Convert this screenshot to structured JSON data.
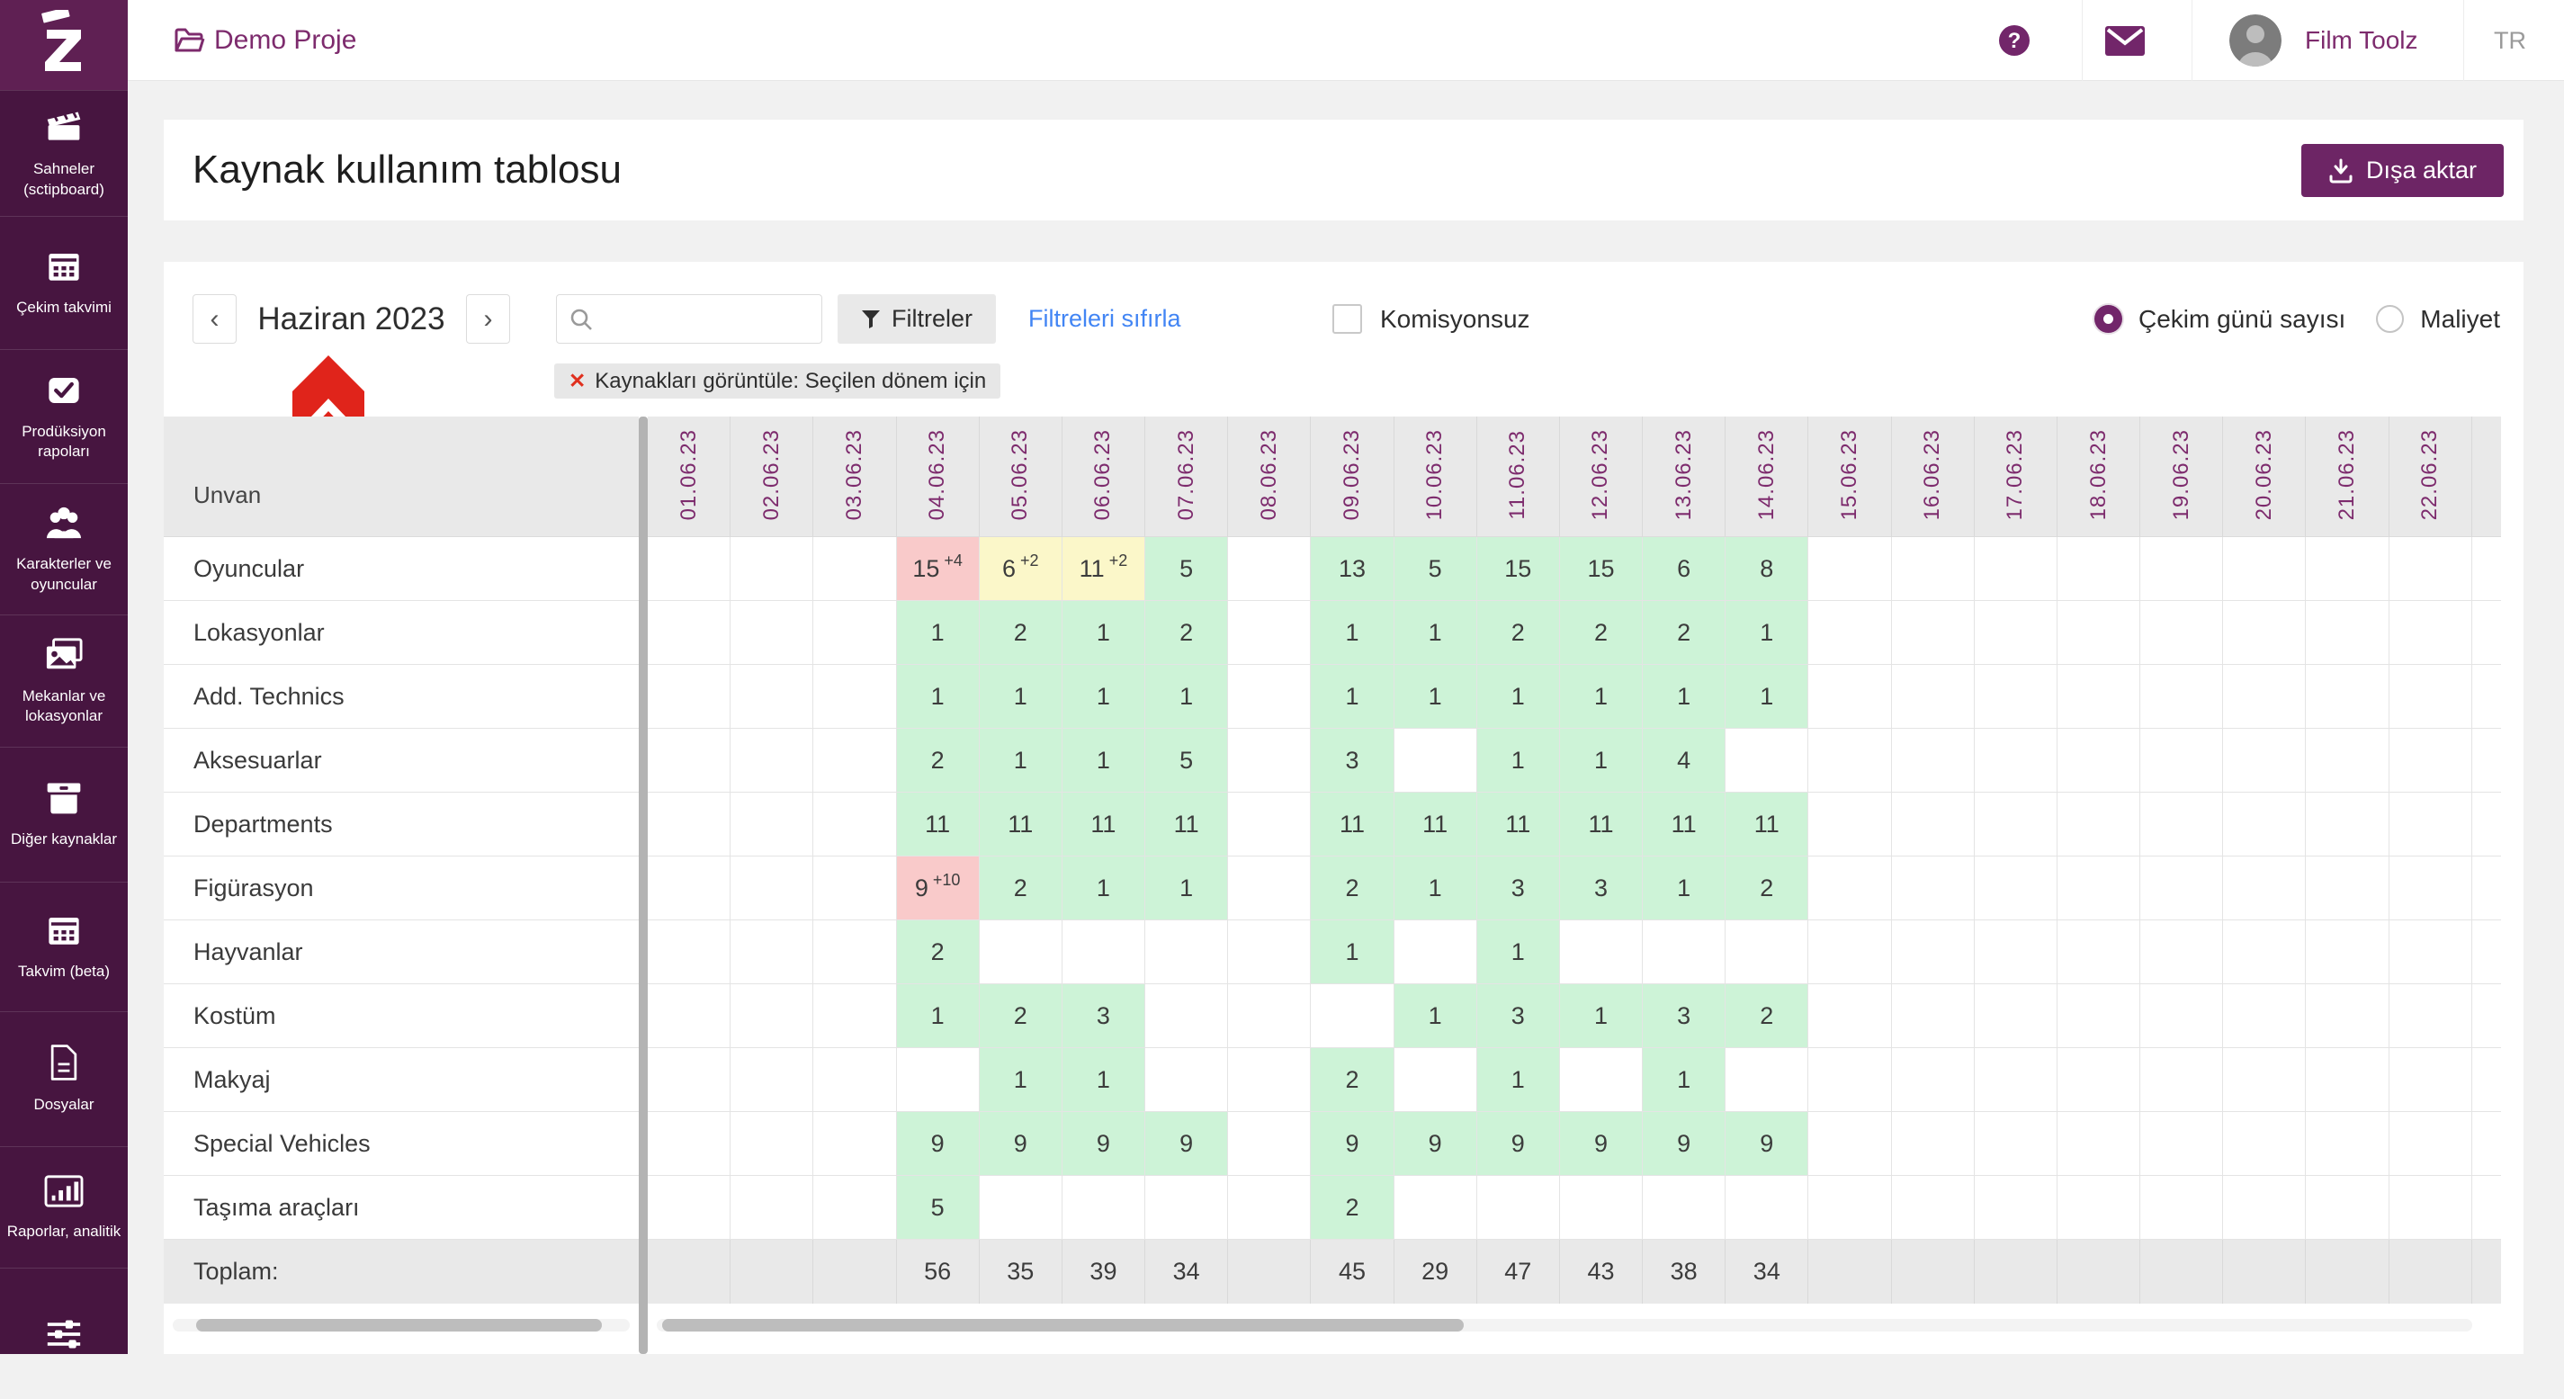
{
  "topbar": {
    "project": "Demo Proje",
    "account": "Film Toolz",
    "lang": "TR"
  },
  "sidebar": {
    "items": [
      {
        "icon": "clapperboard-icon",
        "label": "Sahneler (sctipboard)"
      },
      {
        "icon": "calendar-icon",
        "label": "Çekim takvimi"
      },
      {
        "icon": "check-square-icon",
        "label": "Prodüksiyon rapoları"
      },
      {
        "icon": "people-icon",
        "label": "Karakterler ve oyuncular"
      },
      {
        "icon": "photo-icon",
        "label": "Mekanlar ve lokasyonlar"
      },
      {
        "icon": "archive-icon",
        "label": "Diğer kaynaklar"
      },
      {
        "icon": "calendar-icon",
        "label": "Takvim (beta)"
      },
      {
        "icon": "file-icon",
        "label": "Dosyalar"
      },
      {
        "icon": "bar-chart-icon",
        "label": "Raporlar, analitik"
      },
      {
        "icon": "sliders-icon",
        "label": ""
      }
    ]
  },
  "page": {
    "title": "Kaynak kullanım tablosu",
    "export_label": "Dışa aktar"
  },
  "toolbar": {
    "prev": "‹",
    "next": "›",
    "month": "Haziran 2023",
    "search_placeholder": "",
    "search_value": "",
    "filters_label": "Filtreler",
    "reset_label": "Filtreleri sıfırla",
    "checkbox_label": "Komisyonsuz",
    "checkbox_checked": false,
    "radio_days_label": "Çekim günü sayısı",
    "radio_days_selected": true,
    "radio_cost_label": "Maliyet",
    "radio_cost_selected": false
  },
  "filter_chip": {
    "close": "✕",
    "text": "Kaynakları görüntüle: Seçilen dönem için"
  },
  "table": {
    "first_col_header": "Unvan",
    "dates": [
      "01.06.23",
      "02.06.23",
      "03.06.23",
      "04.06.23",
      "05.06.23",
      "06.06.23",
      "07.06.23",
      "08.06.23",
      "09.06.23",
      "10.06.23",
      "11.06.23",
      "12.06.23",
      "13.06.23",
      "14.06.23",
      "15.06.23",
      "16.06.23",
      "17.06.23",
      "18.06.23",
      "19.06.23",
      "20.06.23",
      "21.06.23",
      "22.06.23"
    ],
    "rows": [
      {
        "label": "Oyuncular",
        "cells": [
          null,
          null,
          null,
          {
            "v": 15,
            "sup": "+4",
            "bg": "pink"
          },
          {
            "v": 6,
            "sup": "+2",
            "bg": "yellow"
          },
          {
            "v": 11,
            "sup": "+2",
            "bg": "yellow"
          },
          5,
          null,
          13,
          5,
          15,
          15,
          6,
          8,
          null,
          null,
          null,
          null,
          null,
          null,
          null,
          null
        ]
      },
      {
        "label": "Lokasyonlar",
        "cells": [
          null,
          null,
          null,
          1,
          2,
          1,
          2,
          null,
          1,
          1,
          2,
          2,
          2,
          1,
          null,
          null,
          null,
          null,
          null,
          null,
          null,
          null
        ]
      },
      {
        "label": "Add. Technics",
        "cells": [
          null,
          null,
          null,
          1,
          1,
          1,
          1,
          null,
          1,
          1,
          1,
          1,
          1,
          1,
          null,
          null,
          null,
          null,
          null,
          null,
          null,
          null
        ]
      },
      {
        "label": "Aksesuarlar",
        "cells": [
          null,
          null,
          null,
          2,
          1,
          1,
          5,
          null,
          3,
          null,
          1,
          1,
          4,
          null,
          null,
          null,
          null,
          null,
          null,
          null,
          null,
          null
        ]
      },
      {
        "label": "Departments",
        "cells": [
          null,
          null,
          null,
          11,
          11,
          11,
          11,
          null,
          11,
          11,
          11,
          11,
          11,
          11,
          null,
          null,
          null,
          null,
          null,
          null,
          null,
          null
        ]
      },
      {
        "label": "Figürasyon",
        "cells": [
          null,
          null,
          null,
          {
            "v": 9,
            "sup": "+10",
            "bg": "pink"
          },
          2,
          1,
          1,
          null,
          2,
          1,
          3,
          3,
          1,
          2,
          null,
          null,
          null,
          null,
          null,
          null,
          null,
          null
        ]
      },
      {
        "label": "Hayvanlar",
        "cells": [
          null,
          null,
          null,
          2,
          null,
          null,
          null,
          null,
          1,
          null,
          1,
          null,
          null,
          null,
          null,
          null,
          null,
          null,
          null,
          null,
          null,
          null
        ]
      },
      {
        "label": "Kostüm",
        "cells": [
          null,
          null,
          null,
          1,
          2,
          3,
          null,
          null,
          null,
          1,
          3,
          1,
          3,
          2,
          null,
          null,
          null,
          null,
          null,
          null,
          null,
          null
        ]
      },
      {
        "label": "Makyaj",
        "cells": [
          null,
          null,
          null,
          null,
          1,
          1,
          null,
          null,
          2,
          null,
          1,
          null,
          1,
          null,
          null,
          null,
          null,
          null,
          null,
          null,
          null,
          null
        ]
      },
      {
        "label": "Special Vehicles",
        "cells": [
          null,
          null,
          null,
          9,
          9,
          9,
          9,
          null,
          9,
          9,
          9,
          9,
          9,
          9,
          null,
          null,
          null,
          null,
          null,
          null,
          null,
          null
        ]
      },
      {
        "label": "Taşıma araçları",
        "cells": [
          null,
          null,
          null,
          5,
          null,
          null,
          null,
          null,
          2,
          null,
          null,
          null,
          null,
          null,
          null,
          null,
          null,
          null,
          null,
          null,
          null,
          null
        ]
      }
    ],
    "total": {
      "label": "Toplam:",
      "cells": [
        null,
        null,
        null,
        56,
        35,
        39,
        34,
        null,
        45,
        29,
        47,
        43,
        38,
        34,
        null,
        null,
        null,
        null,
        null,
        null,
        null,
        null
      ]
    }
  },
  "colors": {
    "brand": "#7d2b6d",
    "sidebar_bg": "#471540",
    "logo_bg": "#5f2053",
    "button": "#6d2565",
    "cell_green": "#cdf3d7",
    "cell_pink": "#f9caca",
    "cell_yellow": "#fbf7c9",
    "link_blue": "#4285f4",
    "annotation_red": "#e0241b",
    "header_gray": "#e9e9e9"
  }
}
